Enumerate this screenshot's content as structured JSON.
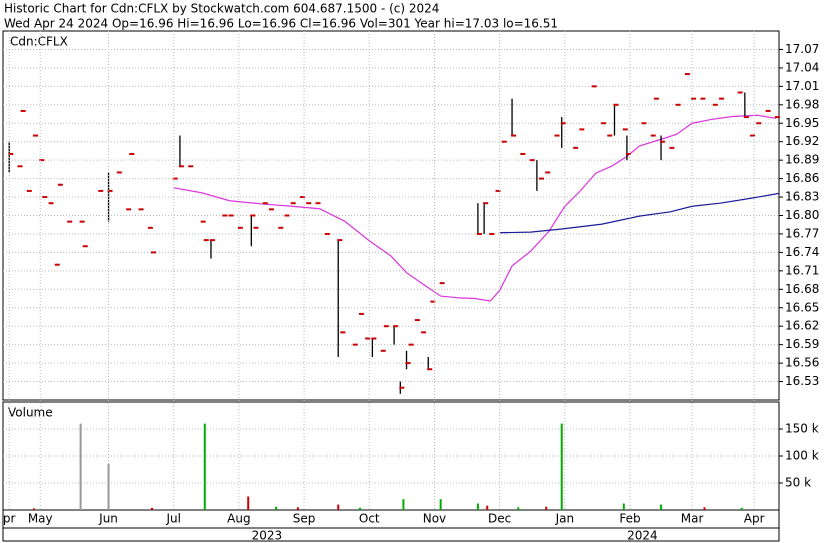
{
  "chart_data": [
    {
      "type": "stock",
      "title": "Historic Chart for Cdn:CFLX by Stockwatch.com 604.687.1500 - (c) 2024",
      "subtitle": "Wed Apr 24 2024   Op=16.96  Hi=16.96  Lo=16.96  Cl=16.96  Vol=301  Year hi=17.03  lo=16.51",
      "label": "Cdn:CFLX",
      "xlim": [
        0,
        250
      ],
      "ylim": [
        16.5,
        17.1
      ],
      "yticks": [
        16.53,
        16.56,
        16.59,
        16.62,
        16.65,
        16.68,
        16.71,
        16.74,
        16.77,
        {
          "value": 16.8,
          "label": "16.80"
        },
        16.83,
        16.86,
        16.89,
        16.92,
        16.95,
        16.98,
        17.01,
        17.04,
        17.07
      ],
      "grid": true,
      "x": [
        2,
        5,
        6,
        8,
        10,
        12,
        13,
        15,
        17,
        18,
        21,
        25,
        26,
        31,
        34,
        37,
        40,
        41,
        44,
        47,
        48,
        55,
        57,
        60,
        64,
        65,
        67,
        71,
        73,
        76,
        80,
        81,
        84,
        86,
        89,
        91,
        93,
        96,
        98,
        101,
        104,
        108,
        109,
        113,
        115,
        117,
        119,
        122,
        123,
        126,
        128,
        130,
        131,
        133,
        135,
        137,
        138,
        141,
        153,
        155,
        157,
        159,
        161,
        164,
        167,
        170,
        173,
        175,
        178,
        180,
        184,
        186,
        190,
        193,
        195,
        197,
        200,
        201,
        206,
        209,
        210,
        212,
        215,
        217,
        220,
        222,
        225,
        229,
        231,
        237,
        239,
        241,
        243,
        246,
        249
      ],
      "close": [
        16.9,
        16.88,
        16.97,
        16.84,
        16.93,
        16.89,
        16.83,
        16.82,
        16.72,
        16.85,
        16.79,
        16.79,
        16.75,
        16.84,
        16.84,
        16.87,
        16.81,
        16.9,
        16.81,
        16.78,
        16.74,
        16.86,
        16.88,
        16.88,
        16.79,
        16.76,
        16.76,
        16.8,
        16.8,
        16.78,
        16.8,
        16.78,
        16.82,
        16.81,
        16.78,
        16.8,
        16.82,
        16.83,
        16.82,
        16.82,
        16.77,
        16.76,
        16.61,
        16.59,
        16.64,
        16.6,
        16.6,
        16.58,
        16.62,
        16.62,
        16.52,
        16.56,
        16.59,
        16.63,
        16.61,
        16.55,
        16.66,
        16.69,
        16.77,
        16.82,
        16.77,
        16.84,
        16.92,
        16.93,
        16.9,
        16.89,
        16.86,
        16.87,
        16.93,
        16.95,
        16.91,
        16.94,
        17.01,
        16.95,
        16.93,
        16.98,
        16.94,
        16.9,
        16.95,
        16.93,
        16.99,
        16.92,
        16.91,
        16.98,
        17.03,
        16.99,
        16.99,
        16.98,
        16.99,
        17.0,
        16.96,
        16.93,
        16.95,
        16.97,
        16.96
      ],
      "close_color": "#cc0000",
      "ranges": {
        "x": [
          2,
          34,
          57,
          67,
          80,
          108,
          119,
          126,
          128,
          130,
          137,
          153,
          155,
          164,
          172,
          180,
          197,
          201,
          212,
          239
        ],
        "low": [
          16.87,
          16.79,
          16.88,
          16.73,
          16.75,
          16.57,
          16.57,
          16.59,
          16.51,
          16.55,
          16.55,
          16.77,
          16.77,
          16.93,
          16.84,
          16.91,
          16.93,
          16.89,
          16.89,
          16.96
        ],
        "high": [
          16.92,
          16.87,
          16.93,
          16.76,
          16.8,
          16.76,
          16.6,
          16.62,
          16.53,
          16.58,
          16.57,
          16.82,
          16.82,
          16.99,
          16.89,
          16.96,
          16.98,
          16.93,
          16.93,
          17.0
        ]
      },
      "range_color": "#000000",
      "series": [
        {
          "color": "#dd33dd",
          "x": [
            55,
            64,
            73,
            83,
            93,
            102,
            110,
            118,
            125,
            130,
            136,
            141,
            147,
            152,
            157,
            160,
            164,
            170,
            176,
            181,
            186,
            191,
            196,
            201,
            205,
            212,
            217,
            222,
            228,
            235,
            243,
            249
          ],
          "values": [
            16.845,
            16.837,
            16.824,
            16.819,
            16.815,
            16.811,
            16.791,
            16.759,
            16.734,
            16.707,
            16.686,
            16.669,
            16.666,
            16.665,
            16.661,
            16.678,
            16.718,
            16.742,
            16.775,
            16.815,
            16.84,
            16.869,
            16.88,
            16.896,
            16.913,
            16.924,
            16.932,
            16.95,
            16.956,
            16.961,
            16.963,
            16.958
          ]
        },
        {
          "color": "#1a1a9a",
          "x": [
            160,
            170,
            180,
            193,
            205,
            215,
            222,
            231,
            241,
            250
          ],
          "values": [
            16.772,
            16.773,
            16.778,
            16.786,
            16.799,
            16.806,
            16.815,
            16.82,
            16.828,
            16.836
          ]
        }
      ]
    },
    {
      "type": "bar",
      "title": "Volume",
      "xlim": [
        0,
        250
      ],
      "ylim": [
        0,
        200000
      ],
      "yticks": [
        {
          "value": 50000,
          "label": "50 k"
        },
        {
          "value": 100000,
          "label": "100 k"
        },
        {
          "value": 150000,
          "label": "150 k"
        }
      ],
      "grid": true,
      "x": [
        10,
        25,
        34,
        48,
        65,
        79,
        88,
        95,
        108,
        115,
        129,
        141,
        153,
        156,
        166,
        175,
        180,
        200,
        212,
        226,
        238
      ],
      "values": [
        3000,
        160000,
        85000,
        4000,
        160000,
        25000,
        6000,
        5000,
        10000,
        4000,
        20000,
        20000,
        12000,
        8000,
        5000,
        6000,
        160000,
        12000,
        10000,
        5000,
        4000
      ],
      "colors": [
        "#cc0000",
        "#999999",
        "#999999",
        "#cc0000",
        "#00aa00",
        "#cc0000",
        "#00aa00",
        "#cc0000",
        "#cc0000",
        "#00aa00",
        "#00aa00",
        "#00aa00",
        "#00aa00",
        "#cc0000",
        "#00aa00",
        "#cc0000",
        "#00aa00",
        "#00aa00",
        "#00aa00",
        "#cc0000",
        "#00aa00"
      ],
      "xticks": [
        {
          "value": 2,
          "label": "pr"
        },
        {
          "value": 12,
          "label": "May"
        },
        {
          "value": 34,
          "label": "Jun"
        },
        {
          "value": 55,
          "label": "Jul"
        },
        {
          "value": 76,
          "label": "Aug"
        },
        {
          "value": 97,
          "label": "Sep"
        },
        {
          "value": 118,
          "label": "Oct"
        },
        {
          "value": 139,
          "label": "Nov"
        },
        {
          "value": 160,
          "label": "Dec"
        },
        {
          "value": 181,
          "label": "Jan"
        },
        {
          "value": 202,
          "label": "Feb"
        },
        {
          "value": 222,
          "label": "Mar"
        },
        {
          "value": 242,
          "label": "Apr"
        }
      ],
      "year_ticks": [
        {
          "value": 85,
          "label": "2023"
        },
        {
          "value": 206,
          "label": "2024"
        }
      ]
    }
  ]
}
